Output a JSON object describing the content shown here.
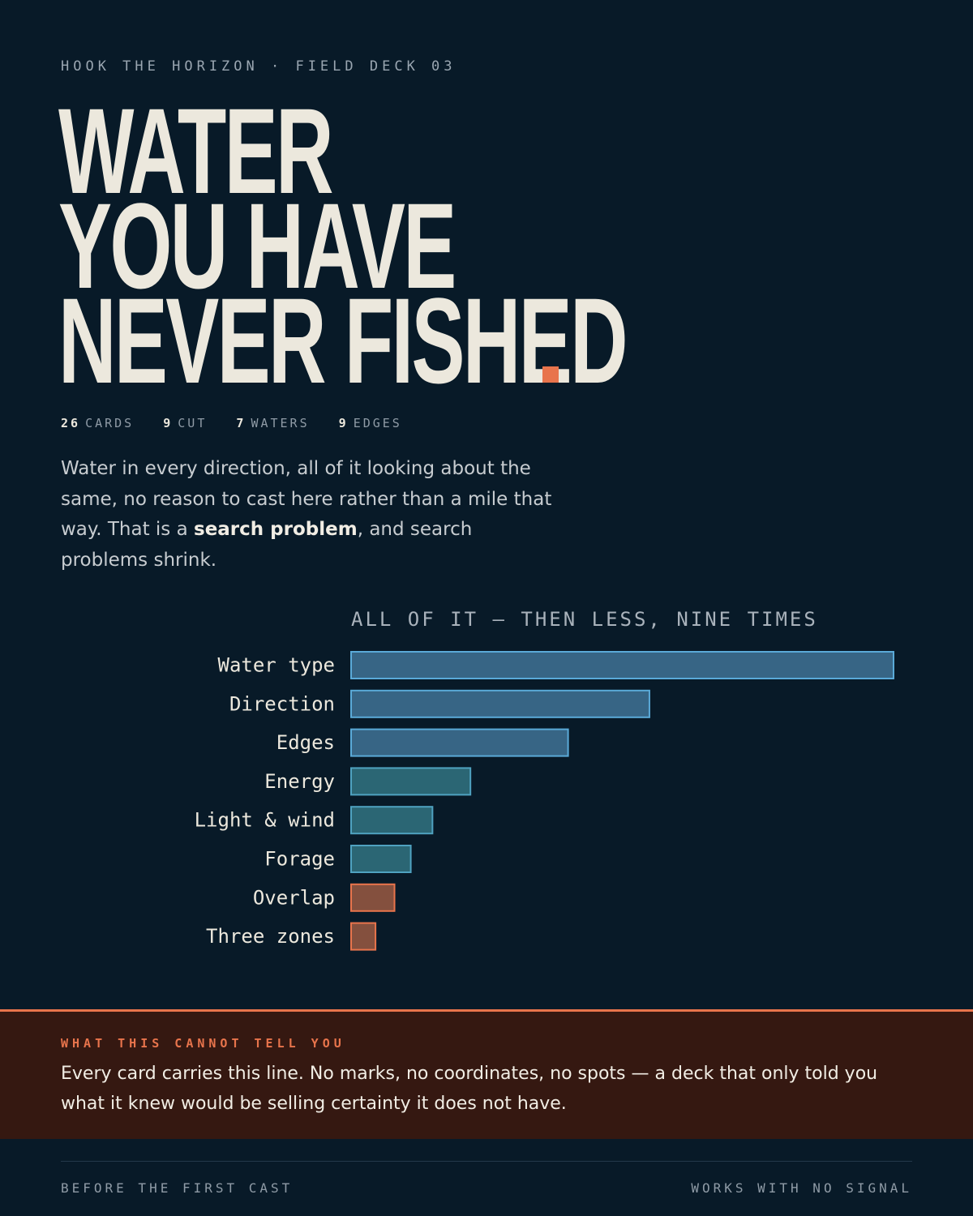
{
  "eyebrow": "HOOK THE HORIZON · FIELD DECK 03",
  "headline": {
    "line1": "WATER",
    "line2": "YOU HAVE",
    "line3": "NEVER FISHED",
    "accent_color": "#e8744c"
  },
  "stats": [
    {
      "num": "26",
      "label": "CARDS"
    },
    {
      "num": "9",
      "label": "CUT"
    },
    {
      "num": "7",
      "label": "WATERS"
    },
    {
      "num": "9",
      "label": "EDGES"
    }
  ],
  "intro": {
    "before": "Water in every direction, all of it looking about the same, no reason to cast here rather than a mile that way. That is a ",
    "bold": "search problem",
    "after": ", and search problems shrink."
  },
  "chart_data": {
    "type": "bar",
    "orientation": "horizontal",
    "title": "ALL OF IT — THEN LESS, NINE TIMES",
    "categories": [
      "Water type",
      "Direction",
      "Edges",
      "Energy",
      "Light & wind",
      "Forage",
      "Overlap",
      "Three zones"
    ],
    "values": [
      100,
      55,
      40,
      22,
      15,
      11,
      8,
      4.5
    ],
    "xlim": [
      0,
      100
    ],
    "grid": false,
    "colors": {
      "blue": "#376585",
      "blue_stroke": "#5aaad8",
      "teal": "#2b6674",
      "teal_stroke": "#4fa2c0",
      "orange": "#84503e",
      "orange_stroke": "#e8744c"
    },
    "bar_color_groups": [
      "blue",
      "blue",
      "blue",
      "teal",
      "teal",
      "teal",
      "orange",
      "orange"
    ]
  },
  "note": {
    "kicker": "WHAT THIS CANNOT TELL YOU",
    "text": "Every card carries this line. No marks, no coordinates, no spots — a deck that only told you what it knew would be selling certainty it does not have."
  },
  "footer": {
    "left": "BEFORE THE FIRST CAST",
    "right": "WORKS WITH NO SIGNAL"
  }
}
